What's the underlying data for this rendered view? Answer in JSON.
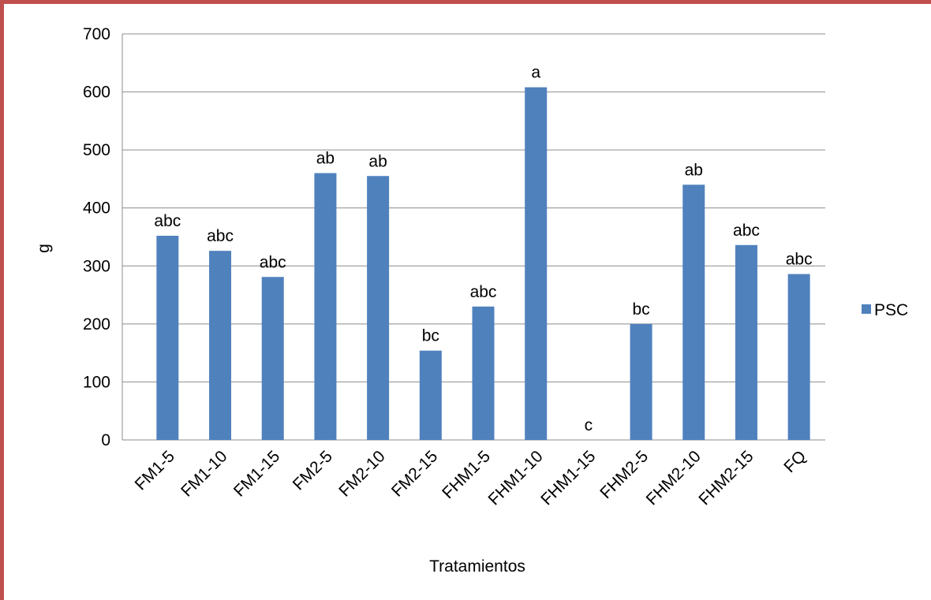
{
  "chart_data": {
    "type": "bar",
    "x_label": "Tratamientos",
    "y_label": "g",
    "categories": [
      "FM1-5",
      "FM1-10",
      "FM1-15",
      "FM2-5",
      "FM2-10",
      "FM2-15",
      "FHM1-5",
      "FHM1-10",
      "FHM1-15",
      "FHM2-5",
      "FHM2-10",
      "FHM2-15",
      "FQ"
    ],
    "series": [
      {
        "name": "PSC",
        "color": "#4f81bd",
        "values": [
          352,
          326,
          281,
          460,
          455,
          154,
          230,
          608,
          0,
          200,
          440,
          336,
          286
        ]
      }
    ],
    "annotations": [
      "abc",
      "abc",
      "abc",
      "ab",
      "ab",
      "bc",
      "abc",
      "a",
      "c",
      "bc",
      "ab",
      "abc",
      "abc"
    ],
    "ylim": [
      0,
      700
    ],
    "yticks": [
      0,
      100,
      200,
      300,
      400,
      500,
      600,
      700
    ],
    "grid": true,
    "legend": "right"
  }
}
